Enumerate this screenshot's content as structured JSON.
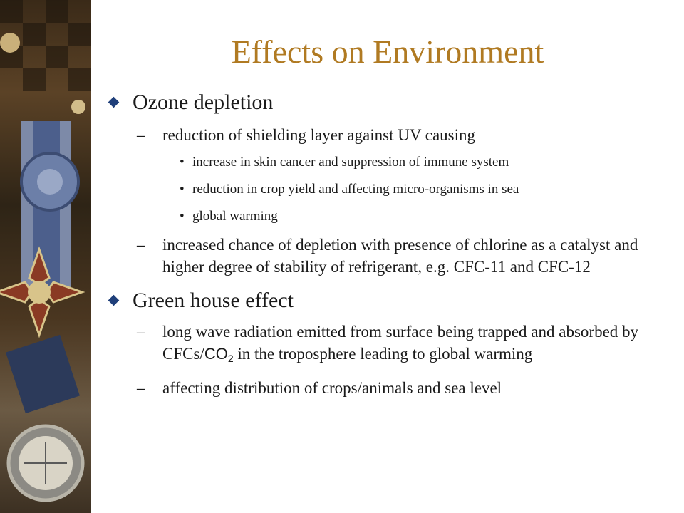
{
  "slide": {
    "title": "Effects on Environment",
    "sections": [
      {
        "heading": "Ozone depletion",
        "items": [
          {
            "text": "reduction of shielding layer against UV causing",
            "subitems": [
              "increase in skin cancer and suppression of immune system",
              "reduction in crop yield and affecting micro-organisms in sea",
              "global warming"
            ]
          },
          {
            "text": "increased chance of depletion with presence of chlorine as a catalyst and higher degree of stability of refrigerant, e.g. CFC-11 and CFC-12"
          }
        ]
      },
      {
        "heading": "Green house effect",
        "items": [
          {
            "text_before": "long wave radiation emitted from surface being trapped and absorbed by CFCs/",
            "formula_main": "CO",
            "formula_sub": "2",
            "text_after": " in the troposphere leading to global warming"
          },
          {
            "text": "affecting distribution of crops/animals and sea level"
          }
        ]
      }
    ]
  },
  "markers": {
    "dash": "–",
    "dot": "•"
  },
  "colors": {
    "title": "#b07a22",
    "bullet": "#1f3f7a",
    "text": "#1a1a1a"
  },
  "decor": {
    "left_strip": "vintage-medal-collage"
  }
}
